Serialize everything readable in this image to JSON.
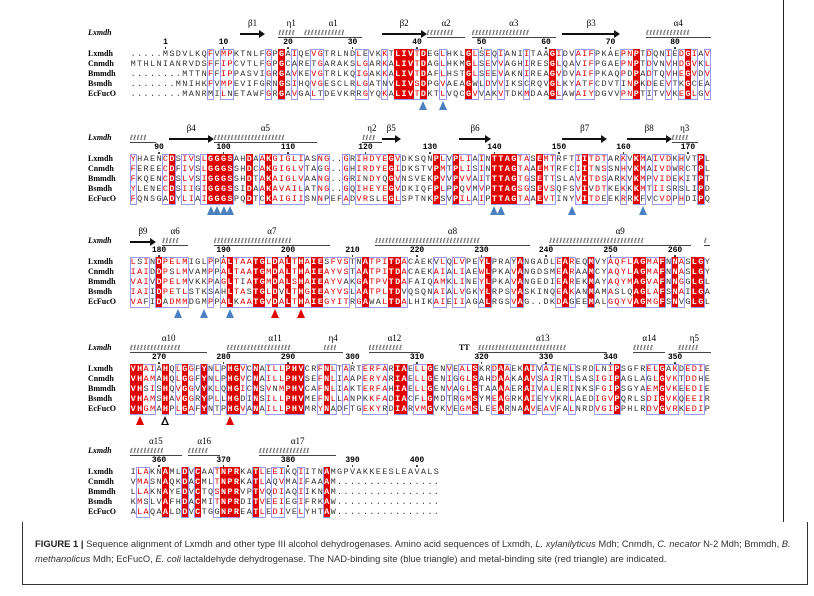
{
  "sequence_names": [
    "Lxmdh",
    "Cnmdh",
    "Bmmdh",
    "Bsmdh",
    "EcFucO"
  ],
  "ss_reference": "Lxmdh",
  "colors": {
    "identical_bg": "#e00000",
    "similar_text": "#e00000",
    "similar_box": "#9a9af0",
    "nad_marker": "#4a7fc0",
    "metal_marker": "#e00000"
  },
  "blocks": [
    {
      "rows": [
        ".....MSDVLKQFVMPKTNLFGPGAIQEVGTRLNDLEVKKTLIVTDEGLHKLGLSEQIANIITAAGIDVAIFPKAEPNPTDQNIEDGIAV",
        "MTHLNIANRVDSFFIPCVTLFGPGCARETGARAKSLGARKALIVTDAGLHKMGLSEVVAGHIRESGLQAVIFPGAEPNPTDVNVHDGVKL",
        "........MTTNFFIPPASVIGRGAVKEVGTRLKQIGAKKALIVTDAFLHSTGLSEEVAKNIREAGVDVAIFPKAQPDPADTQVHEGVDV",
        ".......MNIHKFVMPEVIFGRNGSIHQVGESCLRLGATNVLIVSDPGVAEAGWLDVVIKSCRQVGLKYATFCDVTINPKDEEVTKGCEA",
        "........MANRMILNETAWFGRGAVGALTDEVKRRGYQKALIVTDKTLVQCGVVAKVTDKMDAAGLAWAIYDGVVPNPTITVVKEGLGV"
      ],
      "ticks": [
        {
          "label": "1",
          "col": 5
        },
        {
          "label": "10",
          "col": 14
        },
        {
          "label": "20",
          "col": 24
        },
        {
          "label": "30",
          "col": 34
        },
        {
          "label": "40",
          "col": 44
        },
        {
          "label": "50",
          "col": 54
        },
        {
          "label": "60",
          "col": 64
        },
        {
          "label": "70",
          "col": 74
        },
        {
          "label": "80",
          "col": 84
        }
      ],
      "ss": [
        {
          "type": "strand",
          "label": "β1",
          "start": 17,
          "end": 20
        },
        {
          "type": "helix",
          "label": "η1",
          "start": 23,
          "end": 26
        },
        {
          "type": "helix",
          "label": "α1",
          "start": 27,
          "end": 35
        },
        {
          "type": "strand",
          "label": "β2",
          "start": 39,
          "end": 45
        },
        {
          "type": "helix",
          "label": "α2",
          "start": 46,
          "end": 51
        },
        {
          "type": "helix",
          "label": "α3",
          "start": 53,
          "end": 65
        },
        {
          "type": "strand",
          "label": "β3",
          "start": 67,
          "end": 75
        },
        {
          "type": "helix",
          "label": "α4",
          "start": 80,
          "end": 89
        }
      ],
      "markers": [
        {
          "type": "nad",
          "col": 45
        },
        {
          "type": "nad",
          "col": 48
        }
      ]
    },
    {
      "rows": [
        "YHAENCDSIVSLGGGSAHDAAKGIGLIASNG..GRIHDYEGVDKSQNPLVPLIAINTTAGTASEMTRFTIITDTARKVKMAIVDKHVTPL",
        "FEREECDFIVSLGGGSSHDCAKGIGLVTAGG..GHIRDYEGIDKSTVPMTPLISINTTAGTAAEMTRFCIITNSSNHVKMAIVDWRCTPL",
        "FKQENCDSLVSIGGGSSHDTAKAIGLVAANG..GRINDYQGVNSVEKPVVPVVAITTTAGTGSETTSLAVITDSARKVKMPVIDEKITPT",
        "YLENECDSIIGIGGGSSIDAAKAVAILATNG..GQIHEYEGVDKIQFPLPPQVMVPTTAGSGSEVSQFSVIVDTKEKKKMTIISRSLIPD",
        "FQNSGADYLIAIGGGSPQDTCKAIGIISNNPEFADVRSLEGLSPTNKPSVPILAIPTTAGTAAEVTINYVITDEEKRRKFVCVDPHDIPQ"
      ],
      "ticks": [
        {
          "label": "90",
          "col": 4
        },
        {
          "label": "100",
          "col": 14
        },
        {
          "label": "110",
          "col": 24
        },
        {
          "label": "120",
          "col": 36
        },
        {
          "label": "130",
          "col": 46
        },
        {
          "label": "140",
          "col": 56
        },
        {
          "label": "150",
          "col": 66
        },
        {
          "label": "160",
          "col": 76
        },
        {
          "label": "170",
          "col": 86
        }
      ],
      "ss": [
        {
          "type": "helix",
          "label": "",
          "start": 0,
          "end": 3
        },
        {
          "type": "strand",
          "label": "β4",
          "start": 6,
          "end": 12
        },
        {
          "type": "helix",
          "label": "α5",
          "start": 13,
          "end": 28
        },
        {
          "type": "helix",
          "label": "η2",
          "start": 36,
          "end": 38
        },
        {
          "type": "strand",
          "label": "β5",
          "start": 39,
          "end": 41
        },
        {
          "type": "strand",
          "label": "β6",
          "start": 51,
          "end": 55
        },
        {
          "type": "strand",
          "label": "β7",
          "start": 67,
          "end": 73
        },
        {
          "type": "strand",
          "label": "β8",
          "start": 77,
          "end": 83
        },
        {
          "type": "helix",
          "label": "η3",
          "start": 84,
          "end": 87
        }
      ],
      "markers": [
        {
          "type": "nad",
          "col": 12
        },
        {
          "type": "nad",
          "col": 13
        },
        {
          "type": "nad",
          "col": 14
        },
        {
          "type": "nad",
          "col": 15
        },
        {
          "type": "nad",
          "col": 56
        },
        {
          "type": "nad",
          "col": 57
        },
        {
          "type": "nad",
          "col": 68
        },
        {
          "type": "nad",
          "col": 79
        }
      ]
    },
    {
      "rows": [
        "LSINDPELMIGLPPALTAATGLDALTHAIESFVSTNATPITDACAEKVLQLVPEYLPRAYANGADLEAREQMVYAQFLAGMAFNNASLGY",
        "IAIDDPSLMVAMPPALTAATGMDALTHAIEAYVSTAATPITDACAEKAIALIAEWLPKAVANGDSMEARAAMCYAQYLAGMAFNNASLGY",
        "VAIVDPELMVKKPAGLTIATGMDALSHAIEAYVAKGATPVTDAFAIQAMKLINEYLPKAVANGEDIEAREKMAYAQYMAGVAFNNGGLGL",
        "IAIIDPETLSTKSAHLTASTGLDVLTHGIEAYVSLAATPLTDVQSQNAIALVGKYLRPSVASKINQEAKANMAMASLQAGLAFSNAILGA",
        "VAFIDADMMDGMPPALKAATGVDALTHAIEGYITRGAWALTDALHIKAIEIIAGALRGSVAG..DKDAGEEMALGQYVAGMGFSNVGLGL"
      ],
      "ticks": [
        {
          "label": "180",
          "col": 4
        },
        {
          "label": "190",
          "col": 14
        },
        {
          "label": "200",
          "col": 24
        },
        {
          "label": "210",
          "col": 34
        },
        {
          "label": "220",
          "col": 44
        },
        {
          "label": "230",
          "col": 54
        },
        {
          "label": "240",
          "col": 64
        },
        {
          "label": "250",
          "col": 74
        },
        {
          "label": "260",
          "col": 84
        }
      ],
      "ss": [
        {
          "type": "strand",
          "label": "β9",
          "start": 0,
          "end": 3
        },
        {
          "type": "helix",
          "label": "α6",
          "start": 5,
          "end": 8
        },
        {
          "type": "helix",
          "label": "α7",
          "start": 13,
          "end": 30
        },
        {
          "type": "helix",
          "label": "α8",
          "start": 38,
          "end": 61
        },
        {
          "type": "helix",
          "label": "α9",
          "start": 65,
          "end": 86
        },
        {
          "type": "helix",
          "label": "",
          "start": 89,
          "end": 89
        }
      ],
      "markers": [
        {
          "type": "nad",
          "col": 7
        },
        {
          "type": "nad",
          "col": 11
        },
        {
          "type": "nad",
          "col": 15
        },
        {
          "type": "metal",
          "col": 22
        },
        {
          "type": "metal",
          "col": 26
        }
      ]
    },
    {
      "rows": [
        "VHAIAHQLGGFYNLPHGVCNAILLPHVCRFNLTARTERFARIAELLGENVEALSKRDAAEKAIVAIENLSRDLNIPSGFRELGAKDEDIE",
        "VHAMAHQLGGFYNLPHGVCNAILLPHVSEFNLIAAPERYARIAELLGENIGGLSAHDAAKAAVSAIRTLSASIGIPAGLAGLGVKTDDHE",
        "VHSISHQVGGVYKLQHGICNSVNMPHVCAFNLIAKTERFAHIAELLGENVAGLSTAAAAERAIVALERINKSFGIPSGYAEMGVKEEDIE",
        "VHAMSHAVGGRYPLLHGDINSILLPHVMEFNLLANPKKFADIACFLGMDTRGMSYMEAGRKAIEYVKRLAEDIGVPQRLSDIGVKQEEIR",
        "VHGMAHPLGAFYNTPHGVANAILLPHVMRYNADFTGEKYRDIARVMGVKVEGMSLEEARNAAVEAVFALNRDVGIPPHLRDVGVRKEDIP"
      ],
      "ticks": [
        {
          "label": "270",
          "col": 4
        },
        {
          "label": "280",
          "col": 14
        },
        {
          "label": "290",
          "col": 24
        },
        {
          "label": "300",
          "col": 34
        },
        {
          "label": "310",
          "col": 44
        },
        {
          "label": "320",
          "col": 54
        },
        {
          "label": "330",
          "col": 64
        },
        {
          "label": "340",
          "col": 74
        },
        {
          "label": "350",
          "col": 84
        }
      ],
      "ss": [
        {
          "type": "helix",
          "label": "α10",
          "start": 0,
          "end": 11
        },
        {
          "type": "helix",
          "label": "α11",
          "start": 15,
          "end": 29
        },
        {
          "type": "helix",
          "label": "η4",
          "start": 30,
          "end": 32
        },
        {
          "type": "helix",
          "label": "α12",
          "start": 37,
          "end": 44
        },
        {
          "type": "turn",
          "label": "TT",
          "start": 51,
          "end": 52
        },
        {
          "type": "helix",
          "label": "α13",
          "start": 54,
          "end": 73
        },
        {
          "type": "helix",
          "label": "α14",
          "start": 78,
          "end": 82
        },
        {
          "type": "helix",
          "label": "η5",
          "start": 85,
          "end": 89
        }
      ],
      "markers": [
        {
          "type": "metal",
          "col": 1
        },
        {
          "type": "open",
          "col": 5
        },
        {
          "type": "metal",
          "col": 15
        }
      ]
    },
    {
      "rows": [
        "ILAKNAMLDVCAATNPRKATLEEIKQIITNAMGPVAKKEESLEAVALS",
        "VMASNAQKDACMLTNPRKATLAQVMAIFAAAM................",
        "LLAKNAYEDVCTQSNPRVPTVQDIAQIIKNAM................",
        "KMSLVAFHDACMITNPRDITVEEIEGIFRKAW................",
        "ALAQAALDDVCTGGNPREATLEDIVELYHTAW................"
      ],
      "ticks": [
        {
          "label": "360",
          "col": 4
        },
        {
          "label": "370",
          "col": 14
        },
        {
          "label": "380",
          "col": 24
        },
        {
          "label": "390",
          "col": 34
        },
        {
          "label": "400",
          "col": 44
        }
      ],
      "ss": [
        {
          "type": "helix",
          "label": "α15",
          "start": 0,
          "end": 7
        },
        {
          "type": "helix",
          "label": "α16",
          "start": 9,
          "end": 13
        },
        {
          "type": "helix",
          "label": "α17",
          "start": 20,
          "end": 31
        }
      ],
      "markers": []
    }
  ],
  "caption": {
    "figure_label": "FIGURE 1 |",
    "t1": " Sequence alignment of Lxmdh and other type III alcohol dehydrogenases. Amino acid sequences of Lxmdh, ",
    "i1": "L. xylanilyticus",
    "t2": " Mdh; Cnmdh, ",
    "i2": "C. necator",
    "t3": " N-2 Mdh; Bmmdh, ",
    "i3": "B. methanolicus",
    "t4": " Mdh; EcFucO, ",
    "i4": "E. coli",
    "t5": " lactaldehyde dehydrogenase. The NAD-binding site (blue triangle) and metal-binding site (red triangle) are indicated."
  }
}
